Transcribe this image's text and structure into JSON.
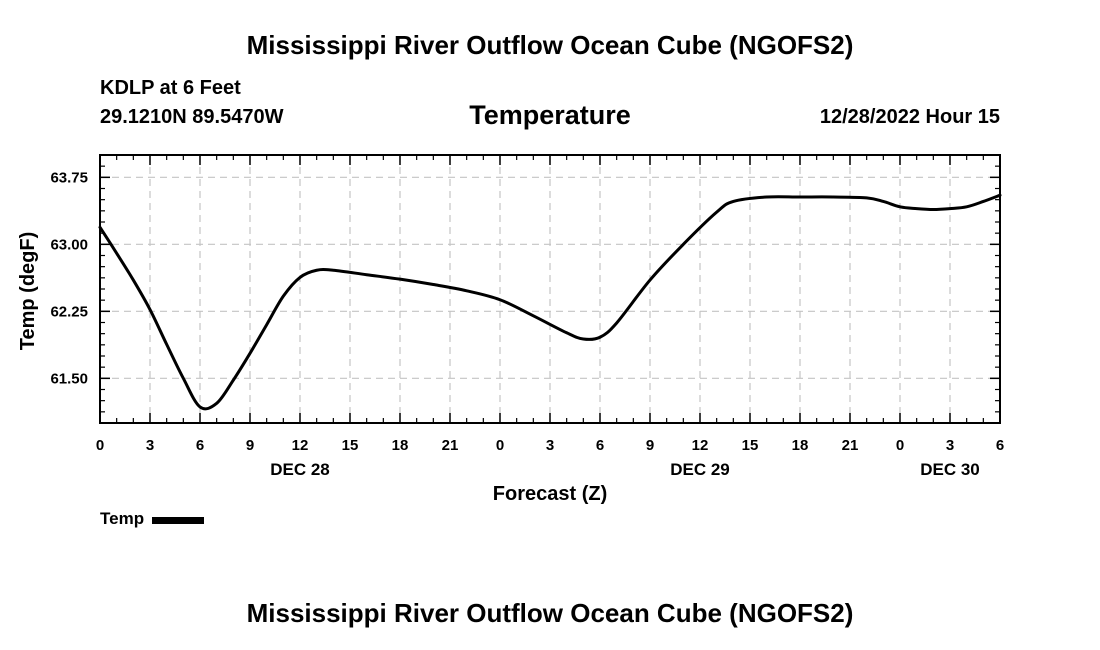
{
  "header": {
    "title": "Mississippi River Outflow Ocean Cube (NGOFS2)",
    "station_name": "KDLP at 6 Feet",
    "station_coords": "29.1210N  89.5470W",
    "chart_title": "Temperature",
    "run_time": "12/28/2022 Hour 15"
  },
  "footer": {
    "title": "Mississippi River Outflow Ocean Cube (NGOFS2)"
  },
  "legend": {
    "label": "Temp"
  },
  "chart_data": {
    "type": "line",
    "title": "Temperature",
    "xlabel": "Forecast (Z)",
    "ylabel": "Temp (degF)",
    "xlim": [
      0,
      54
    ],
    "ylim": [
      61.0,
      64.0
    ],
    "grid": true,
    "legend_position": "bottom-left",
    "x_ticks": [
      0,
      3,
      6,
      9,
      12,
      15,
      18,
      21,
      24,
      27,
      30,
      33,
      36,
      39,
      42,
      45,
      48,
      51,
      54
    ],
    "x_tick_labels": [
      "0",
      "3",
      "6",
      "9",
      "12",
      "15",
      "18",
      "21",
      "0",
      "3",
      "6",
      "9",
      "12",
      "15",
      "18",
      "21",
      "0",
      "3",
      "6"
    ],
    "date_labels": [
      {
        "x": 12,
        "label": "DEC 28"
      },
      {
        "x": 36,
        "label": "DEC 29"
      },
      {
        "x": 51,
        "label": "DEC 30"
      }
    ],
    "y_ticks": [
      61.5,
      62.25,
      63.0,
      63.75
    ],
    "y_tick_labels": [
      "61.50",
      "62.25",
      "63.00",
      "63.75"
    ],
    "series": [
      {
        "name": "Temp",
        "color": "#000000",
        "x": [
          0,
          1,
          2,
          3,
          4,
          5,
          6,
          7,
          8,
          9,
          10,
          11,
          12,
          13,
          14,
          16,
          18,
          20,
          22,
          24,
          26,
          28,
          29,
          30,
          31,
          33,
          35,
          37,
          38,
          40,
          42,
          44,
          46,
          47,
          48,
          49,
          50,
          51,
          52,
          53,
          54
        ],
        "values": [
          63.19,
          62.9,
          62.6,
          62.27,
          61.88,
          61.5,
          61.18,
          61.22,
          61.48,
          61.78,
          62.1,
          62.42,
          62.63,
          62.71,
          62.71,
          62.66,
          62.61,
          62.55,
          62.48,
          62.38,
          62.2,
          62.01,
          61.94,
          61.96,
          62.12,
          62.6,
          63.0,
          63.36,
          63.48,
          63.53,
          63.53,
          63.53,
          63.52,
          63.48,
          63.42,
          63.4,
          63.39,
          63.4,
          63.42,
          63.48,
          63.55
        ]
      }
    ]
  }
}
